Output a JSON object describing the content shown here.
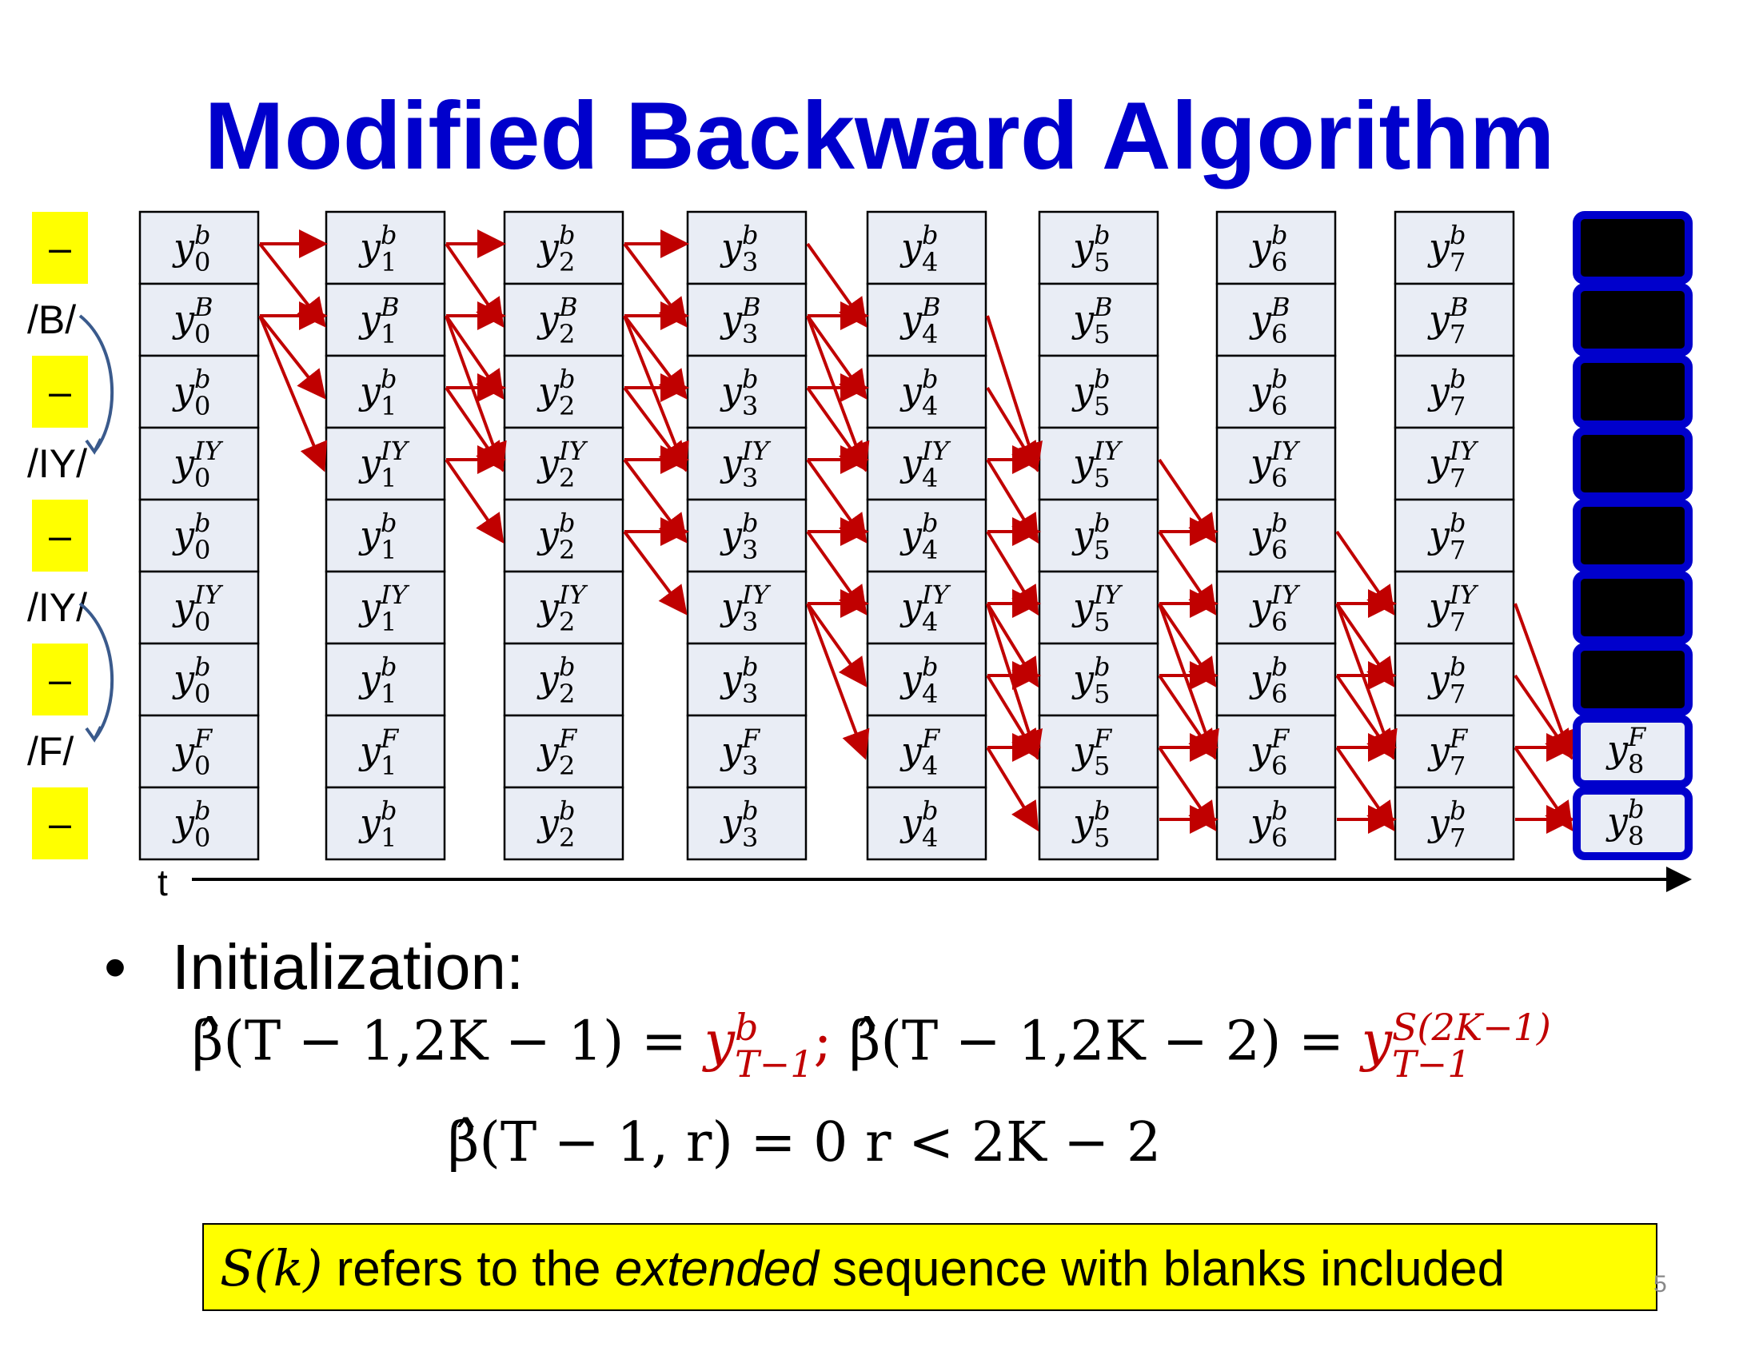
{
  "title": "Modified Backward Algorithm",
  "row_labels": [
    "–",
    "/B/",
    "–",
    "/IY/",
    "–",
    "/IY/",
    "–",
    "/F/",
    "–"
  ],
  "row_symbols": [
    "b",
    "B",
    "b",
    "IY",
    "b",
    "IY",
    "b",
    "F",
    "b"
  ],
  "time_steps": [
    "0",
    "1",
    "2",
    "3",
    "4",
    "5",
    "6",
    "7",
    "8"
  ],
  "time_axis_label": "t",
  "colors": {
    "title": "#0000cc",
    "arrow": "#c00000",
    "cell_fill": "#e9edf5",
    "highlight_border": "#0000cc",
    "blank_label_bg": "#ffff00"
  },
  "final_column_visible_rows": [
    7,
    8
  ],
  "bullet": {
    "symbol": "•",
    "text": "Initialization:"
  },
  "equations": {
    "line1_beta1": "β̂(T − 1,2K − 1) = ",
    "line1_y1_base": "y",
    "line1_y1_sup": "b",
    "line1_y1_sub": "T−1",
    "line1_sep": ";",
    "line1_beta2": " β̂(T − 1,2K − 2) = ",
    "line1_y2_base": "y",
    "line1_y2_sup": "S(2K−1)",
    "line1_y2_sub": "T−1",
    "line2": "β̂(T − 1, r) = 0   r < 2K − 2"
  },
  "note": {
    "math": "S(k)",
    "text_before": " refers to the ",
    "text_emph": "extended",
    "text_after": " sequence with blanks included"
  },
  "page_number": "5"
}
